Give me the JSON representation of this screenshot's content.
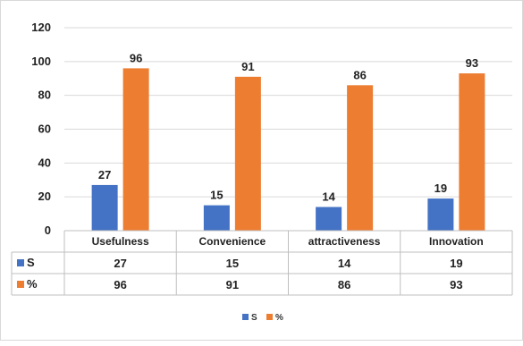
{
  "chart_data": {
    "type": "bar",
    "title": "",
    "xlabel": "",
    "ylabel": "",
    "categories": [
      "Usefulness",
      "Convenience",
      "attractiveness",
      "Innovation"
    ],
    "series": [
      {
        "name": "S",
        "values": [
          27,
          15,
          14,
          19
        ],
        "color": "#4472c4"
      },
      {
        "name": "%",
        "values": [
          96,
          91,
          86,
          93
        ],
        "color": "#ed7d31"
      }
    ],
    "ylim": [
      0,
      120
    ],
    "yticks": [
      0,
      20,
      40,
      60,
      80,
      100,
      120
    ],
    "grid": true,
    "data_labels": true,
    "data_table": true,
    "legend": "bottom"
  }
}
